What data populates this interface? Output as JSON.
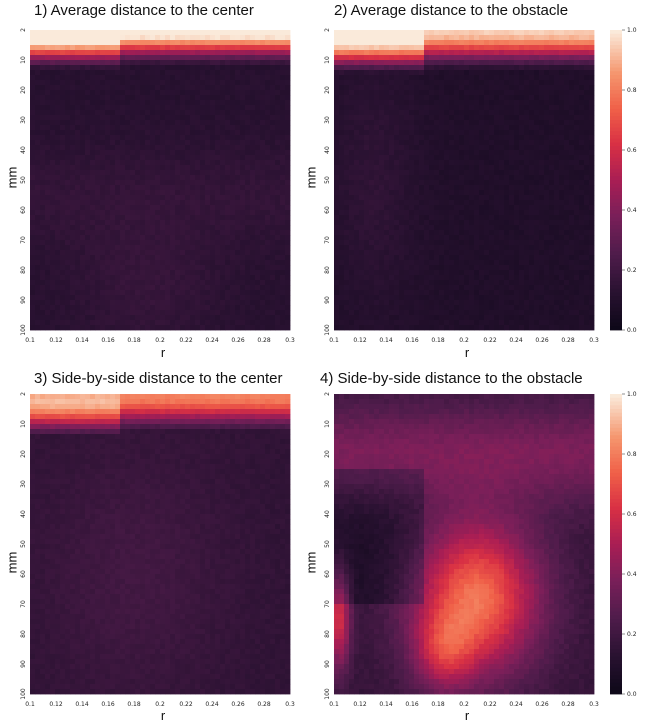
{
  "chart_data": [
    {
      "type": "heatmap",
      "title": "1) Average distance to the center",
      "xlabel": "r",
      "ylabel": "mm",
      "x_ticks": [
        "0.1",
        "0.12",
        "0.14",
        "0.16",
        "0.18",
        "0.2",
        "0.22",
        "0.24",
        "0.26",
        "0.28",
        "0.3"
      ],
      "y_ticks": [
        "2",
        "10",
        "20",
        "30",
        "40",
        "50",
        "60",
        "70",
        "80",
        "90",
        "100"
      ],
      "x_range": [
        0.1,
        0.3
      ],
      "y_range": [
        2,
        100
      ],
      "value_range": [
        0,
        1
      ],
      "pattern": "center"
    },
    {
      "type": "heatmap",
      "title": "2) Average distance to the obstacle",
      "xlabel": "r",
      "ylabel": "mm",
      "x_ticks": [
        "0.1",
        "0.12",
        "0.14",
        "0.16",
        "0.18",
        "0.2",
        "0.22",
        "0.24",
        "0.26",
        "0.28",
        "0.3"
      ],
      "y_ticks": [
        "2",
        "10",
        "20",
        "30",
        "40",
        "50",
        "60",
        "70",
        "80",
        "90",
        "100"
      ],
      "x_range": [
        0.1,
        0.3
      ],
      "y_range": [
        2,
        100
      ],
      "value_range": [
        0,
        1
      ],
      "colorbar_ticks": [
        "0.0",
        "0.2",
        "0.4",
        "0.6",
        "0.8",
        "1.0"
      ],
      "pattern": "obstacle"
    },
    {
      "type": "heatmap",
      "title": "3) Side-by-side distance to the center",
      "xlabel": "r",
      "ylabel": "mm",
      "x_ticks": [
        "0.1",
        "0.12",
        "0.14",
        "0.16",
        "0.18",
        "0.2",
        "0.22",
        "0.24",
        "0.26",
        "0.28",
        "0.3"
      ],
      "y_ticks": [
        "2",
        "10",
        "20",
        "30",
        "40",
        "50",
        "60",
        "70",
        "80",
        "90",
        "100"
      ],
      "x_range": [
        0.1,
        0.3
      ],
      "y_range": [
        2,
        100
      ],
      "value_range": [
        0,
        1
      ],
      "pattern": "sbs_center"
    },
    {
      "type": "heatmap",
      "title": "4) Side-by-side distance to the obstacle",
      "xlabel": "r",
      "ylabel": "mm",
      "x_ticks": [
        "0.1",
        "0.12",
        "0.14",
        "0.16",
        "0.18",
        "0.2",
        "0.22",
        "0.24",
        "0.26",
        "0.28",
        "0.3"
      ],
      "y_ticks": [
        "2",
        "10",
        "20",
        "30",
        "40",
        "50",
        "60",
        "70",
        "80",
        "90",
        "100"
      ],
      "x_range": [
        0.1,
        0.3
      ],
      "y_range": [
        2,
        100
      ],
      "value_range": [
        0,
        1
      ],
      "colorbar_ticks": [
        "0.0",
        "0.2",
        "0.4",
        "0.6",
        "0.8",
        "1.0"
      ],
      "pattern": "sbs_obstacle"
    }
  ]
}
